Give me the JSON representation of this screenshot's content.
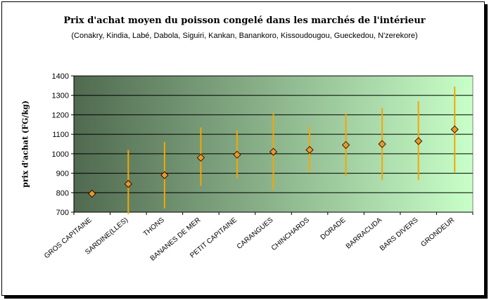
{
  "chart_data": {
    "type": "scatter",
    "title": "Prix d'achat moyen du poisson congelé dans les marchés de l'intérieur",
    "subtitle": "(Conakry, Kindia, Labé, Dabola, Siguiri, Kankan, Banankoro, Kissoudougou, Gueckedou, N'zerekore)",
    "xlabel": "",
    "ylabel": "prix d'achat (FG/kg)",
    "ylim": [
      700,
      1400
    ],
    "yticks": [
      700,
      800,
      900,
      1000,
      1100,
      1200,
      1300,
      1400
    ],
    "grid": true,
    "legend": "none",
    "categories": [
      "GROS CAPITAINE",
      "SARDINE(LLES)",
      "THONS",
      "BANANES DE MER",
      "PETIT CAPITAINE",
      "CARANGUES",
      "CHINCHARDS",
      "DORADE",
      "BARRACUDA",
      "BARS DIVERS",
      "GRONDEUR"
    ],
    "series": [
      {
        "values": [
          795,
          845,
          890,
          980,
          995,
          1010,
          1020,
          1045,
          1050,
          1065,
          1125
        ],
        "low": [
          null,
          690,
          720,
          835,
          875,
          815,
          905,
          885,
          865,
          865,
          905
        ],
        "high": [
          null,
          1020,
          1060,
          1135,
          1120,
          1210,
          1140,
          1205,
          1235,
          1270,
          1345
        ],
        "marker_color": "#f7941d",
        "errorbar_color": "#f7a600"
      }
    ],
    "background_gradient": [
      "#506a50",
      "#c8ffc8"
    ]
  }
}
